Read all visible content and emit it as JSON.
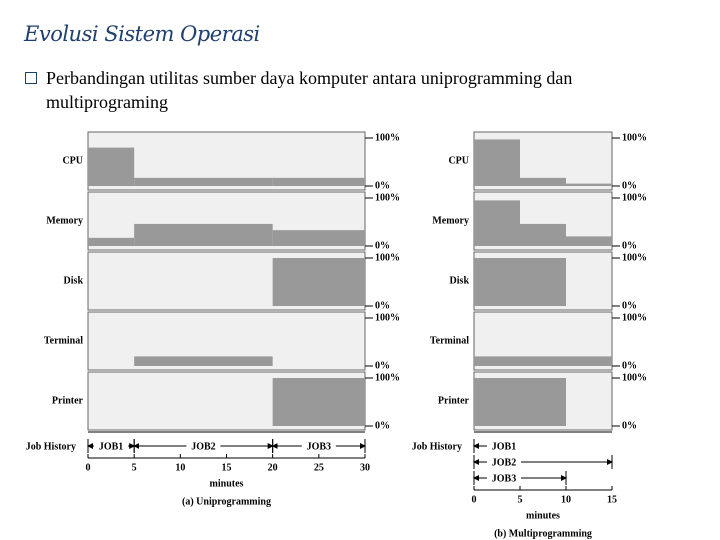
{
  "title": "Evolusi Sistem Operasi",
  "bullet": "Perbandingan utilitas sumber daya komputer antara uniprogramming dan multiprograming",
  "chart_data": [
    {
      "type": "step",
      "caption": "(a) Uniprogramming",
      "x_label": "minutes",
      "history_label": "Job History",
      "xlim": [
        0,
        30
      ],
      "xticks": [
        0,
        5,
        10,
        15,
        20,
        25,
        30
      ],
      "ylim": [
        0,
        100
      ],
      "yticks": [
        {
          "value": 0,
          "label": "0%"
        },
        {
          "value": 100,
          "label": "100%"
        }
      ],
      "bins": [
        0,
        5,
        20,
        30
      ],
      "color": "#999999",
      "resources": [
        {
          "name": "CPU",
          "values": [
            80,
            17,
            17
          ]
        },
        {
          "name": "Memory",
          "values": [
            17,
            46,
            33
          ]
        },
        {
          "name": "Disk",
          "values": [
            0,
            0,
            100
          ]
        },
        {
          "name": "Terminal",
          "values": [
            0,
            20,
            0
          ]
        },
        {
          "name": "Printer",
          "values": [
            0,
            0,
            100
          ]
        }
      ],
      "jobs": [
        {
          "name": "JOB1",
          "start": 0,
          "end": 5
        },
        {
          "name": "JOB2",
          "start": 5,
          "end": 20
        },
        {
          "name": "JOB3",
          "start": 20,
          "end": 30
        }
      ]
    },
    {
      "type": "step",
      "caption": "(b) Multiprogramming",
      "x_label": "minutes",
      "history_label": "Job History",
      "xlim": [
        0,
        15
      ],
      "xticks": [
        0,
        5,
        10,
        15
      ],
      "ylim": [
        0,
        100
      ],
      "yticks": [
        {
          "value": 0,
          "label": "0%"
        },
        {
          "value": 100,
          "label": "100%"
        }
      ],
      "bins": [
        0,
        5,
        10,
        15
      ],
      "color": "#999999",
      "resources": [
        {
          "name": "CPU",
          "values": [
            97,
            17,
            5
          ]
        },
        {
          "name": "Memory",
          "values": [
            95,
            46,
            20
          ]
        },
        {
          "name": "Disk",
          "values": [
            100,
            100,
            0
          ]
        },
        {
          "name": "Terminal",
          "values": [
            20,
            20,
            20
          ]
        },
        {
          "name": "Printer",
          "values": [
            100,
            100,
            0
          ]
        }
      ],
      "jobs": [
        {
          "name": "JOB1",
          "start": 0,
          "end": 5
        },
        {
          "name": "JOB2",
          "start": 0,
          "end": 15
        },
        {
          "name": "JOB3",
          "start": 0,
          "end": 10
        }
      ]
    }
  ]
}
